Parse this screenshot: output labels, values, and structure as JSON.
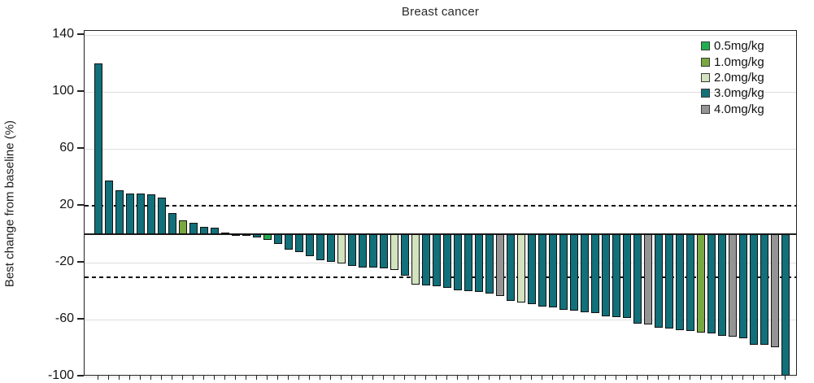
{
  "chart_data": {
    "type": "bar",
    "subtype": "waterfall",
    "title": "Breast cancer",
    "ylabel": "Best change from baseline (%)",
    "ylim": [
      -100,
      143
    ],
    "yticks": [
      140,
      100,
      60,
      20,
      -20,
      -60,
      -100
    ],
    "reference_lines": [
      20,
      -30
    ],
    "zero_line": 0,
    "grid": "horizontal light gray lines at each y tick",
    "legend_position": "top-right inside plot",
    "legend": [
      {
        "label": "0.5mg/kg",
        "dose": "0.5",
        "color": "#1fae4d"
      },
      {
        "label": "1.0mg/kg",
        "dose": "1.0",
        "color": "#79a840"
      },
      {
        "label": "2.0mg/kg",
        "dose": "2.0",
        "color": "#d2e3bd"
      },
      {
        "label": "3.0mg/kg",
        "dose": "3.0",
        "color": "#11707a"
      },
      {
        "label": "4.0mg/kg",
        "dose": "4.0",
        "color": "#949494"
      }
    ],
    "bars": [
      [
        120,
        "3.0"
      ],
      [
        38,
        "3.0"
      ],
      [
        31,
        "3.0"
      ],
      [
        29,
        "3.0"
      ],
      [
        28.5,
        "3.0"
      ],
      [
        28,
        "3.0"
      ],
      [
        26,
        "3.0"
      ],
      [
        15,
        "3.0"
      ],
      [
        10,
        "1.0"
      ],
      [
        8,
        "3.0"
      ],
      [
        5.5,
        "3.0"
      ],
      [
        4.5,
        "3.0"
      ],
      [
        1.5,
        "3.0"
      ],
      [
        0.4,
        "3.0"
      ],
      [
        -1,
        "3.0"
      ],
      [
        -2,
        "3.0"
      ],
      [
        -4,
        "0.5"
      ],
      [
        -6.5,
        "3.0"
      ],
      [
        -10.5,
        "3.0"
      ],
      [
        -12.5,
        "3.0"
      ],
      [
        -15.5,
        "3.0"
      ],
      [
        -18,
        "3.0"
      ],
      [
        -19.5,
        "3.0"
      ],
      [
        -20.5,
        "2.0"
      ],
      [
        -22,
        "3.0"
      ],
      [
        -23,
        "3.0"
      ],
      [
        -23.5,
        "3.0"
      ],
      [
        -24,
        "3.0"
      ],
      [
        -25,
        "2.0"
      ],
      [
        -29,
        "3.0"
      ],
      [
        -35.5,
        "2.0"
      ],
      [
        -36,
        "3.0"
      ],
      [
        -36.5,
        "3.0"
      ],
      [
        -37.5,
        "3.0"
      ],
      [
        -39.5,
        "3.0"
      ],
      [
        -40,
        "3.0"
      ],
      [
        -40.5,
        "3.0"
      ],
      [
        -41.5,
        "3.0"
      ],
      [
        -43,
        "4.0"
      ],
      [
        -47,
        "3.0"
      ],
      [
        -48,
        "2.0"
      ],
      [
        -49,
        "3.0"
      ],
      [
        -51,
        "3.0"
      ],
      [
        -51.5,
        "3.0"
      ],
      [
        -53,
        "3.0"
      ],
      [
        -53.5,
        "3.0"
      ],
      [
        -55,
        "3.0"
      ],
      [
        -55.5,
        "3.0"
      ],
      [
        -57.5,
        "3.0"
      ],
      [
        -58,
        "3.0"
      ],
      [
        -58.5,
        "3.0"
      ],
      [
        -63,
        "3.0"
      ],
      [
        -63.5,
        "4.0"
      ],
      [
        -65.5,
        "3.0"
      ],
      [
        -66,
        "3.0"
      ],
      [
        -67.5,
        "3.0"
      ],
      [
        -68,
        "3.0"
      ],
      [
        -69,
        "1.0"
      ],
      [
        -69.5,
        "3.0"
      ],
      [
        -71.5,
        "3.0"
      ],
      [
        -72,
        "4.0"
      ],
      [
        -73,
        "3.0"
      ],
      [
        -77.5,
        "3.0"
      ],
      [
        -77.5,
        "3.0"
      ],
      [
        -79.5,
        "4.0"
      ],
      [
        -99.5,
        "3.0"
      ]
    ]
  }
}
